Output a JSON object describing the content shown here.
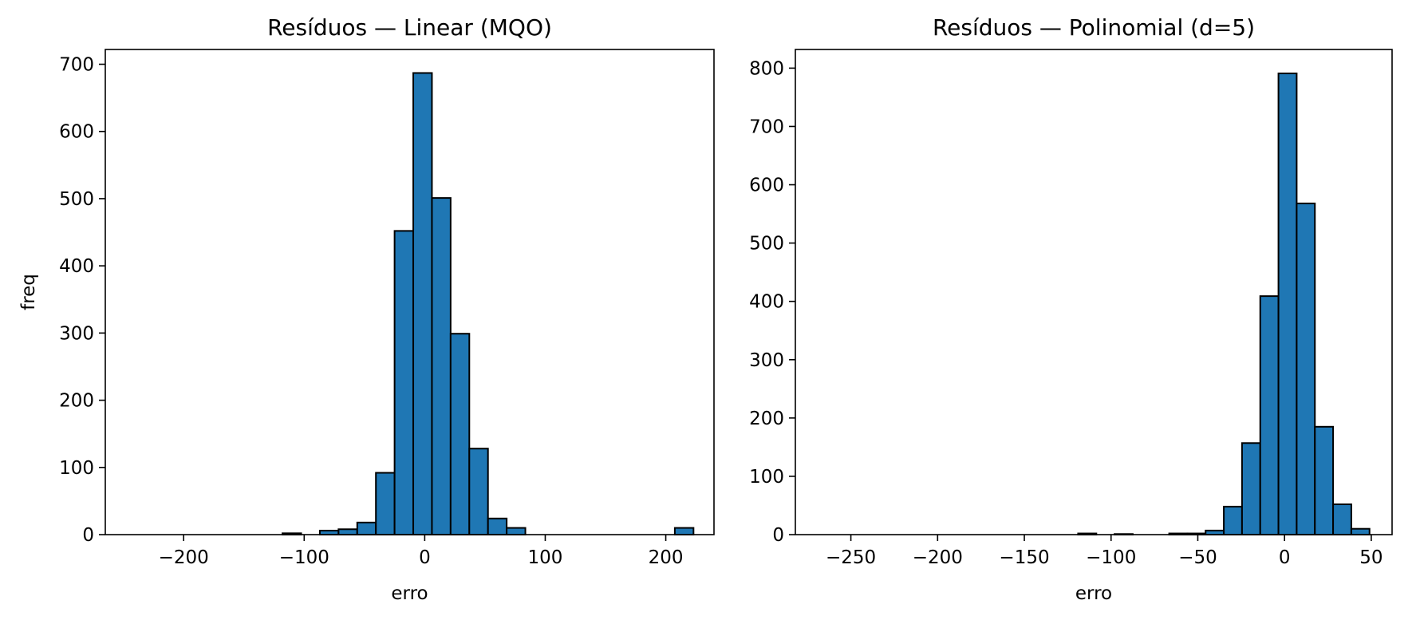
{
  "colors": {
    "bar_fill": "#1f77b4",
    "bar_edge": "#000000",
    "axes": "#000000",
    "background": "#ffffff"
  },
  "chart_data": [
    {
      "type": "bar",
      "title": "Resíduos — Linear (MQO)",
      "xlabel": "erro",
      "ylabel": "freq",
      "xlim": [
        -265,
        240
      ],
      "ylim": [
        0,
        722
      ],
      "xticks": [
        -200,
        -100,
        0,
        100,
        200
      ],
      "xtick_labels": [
        "−200",
        "−100",
        "0",
        "100",
        "200"
      ],
      "yticks": [
        0,
        100,
        200,
        300,
        400,
        500,
        600,
        700
      ],
      "ytick_labels": [
        "0",
        "100",
        "200",
        "300",
        "400",
        "500",
        "600",
        "700"
      ],
      "bin_edges": [
        -242,
        -226.5,
        -211,
        -195.5,
        -180,
        -164.5,
        -149,
        -133.5,
        -118,
        -102.5,
        -87,
        -71.5,
        -56,
        -40.5,
        -25,
        -9.5,
        6,
        21.5,
        37,
        52.5,
        68,
        83.5,
        99,
        114.5,
        130,
        145.5,
        161,
        176.5,
        192,
        207.5,
        223
      ],
      "values": [
        0,
        0,
        0,
        0,
        0,
        0,
        0,
        0,
        2,
        0,
        6,
        8,
        18,
        92,
        452,
        687,
        501,
        299,
        128,
        24,
        10,
        0,
        0,
        0,
        0,
        0,
        0,
        0,
        0,
        10
      ]
    },
    {
      "type": "bar",
      "title": "Resíduos — Polinomial (d=5)",
      "xlabel": "erro",
      "ylabel": "",
      "xlim": [
        -282,
        62
      ],
      "ylim": [
        0,
        832
      ],
      "xticks": [
        -250,
        -200,
        -150,
        -100,
        -50,
        0,
        50
      ],
      "xtick_labels": [
        "−250",
        "−200",
        "−150",
        "−100",
        "−50",
        "0",
        "50"
      ],
      "yticks": [
        0,
        100,
        200,
        300,
        400,
        500,
        600,
        700,
        800
      ],
      "ytick_labels": [
        "0",
        "100",
        "200",
        "300",
        "400",
        "500",
        "600",
        "700",
        "800"
      ],
      "bin_edges": [
        -266,
        -255.5,
        -245,
        -234.5,
        -224,
        -213.5,
        -203,
        -192.5,
        -182,
        -171.5,
        -161,
        -150.5,
        -140,
        -129.5,
        -119,
        -108.5,
        -98,
        -87.5,
        -77,
        -66.5,
        -56,
        -45.5,
        -35,
        -24.5,
        -14,
        -3.5,
        7,
        17.5,
        28,
        38.5,
        49
      ],
      "values": [
        0,
        0,
        0,
        0,
        0,
        0,
        0,
        0,
        0,
        0,
        0,
        0,
        0,
        0,
        2,
        0,
        1,
        0,
        0,
        2,
        2,
        7,
        48,
        157,
        409,
        791,
        568,
        185,
        52,
        10
      ]
    }
  ]
}
